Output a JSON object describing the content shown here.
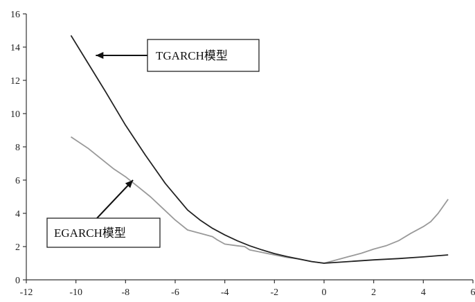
{
  "chart_data": {
    "type": "line",
    "title": "",
    "xlabel": "",
    "ylabel": "",
    "xlim": [
      -12,
      6
    ],
    "ylim": [
      0,
      16
    ],
    "x_ticks": [
      -12,
      -10,
      -8,
      -6,
      -4,
      -2,
      0,
      2,
      4,
      6
    ],
    "y_ticks": [
      0,
      2,
      4,
      6,
      8,
      10,
      12,
      14,
      16
    ],
    "grid": false,
    "series": [
      {
        "name": "TGARCH模型",
        "color": "#222222",
        "points": [
          [
            -10.2,
            14.7
          ],
          [
            -9.5,
            13.0
          ],
          [
            -8.8,
            11.3
          ],
          [
            -8.0,
            9.3
          ],
          [
            -7.2,
            7.5
          ],
          [
            -6.4,
            5.8
          ],
          [
            -5.5,
            4.2
          ],
          [
            -5.0,
            3.6
          ],
          [
            -4.5,
            3.1
          ],
          [
            -4.0,
            2.7
          ],
          [
            -3.5,
            2.35
          ],
          [
            -3.0,
            2.05
          ],
          [
            -2.5,
            1.8
          ],
          [
            -2.0,
            1.58
          ],
          [
            -1.5,
            1.4
          ],
          [
            -1.0,
            1.25
          ],
          [
            -0.5,
            1.1
          ],
          [
            0.0,
            1.0
          ],
          [
            1.0,
            1.1
          ],
          [
            2.0,
            1.2
          ],
          [
            3.0,
            1.28
          ],
          [
            4.0,
            1.38
          ],
          [
            5.0,
            1.5
          ]
        ]
      },
      {
        "name": "EGARCH模型",
        "color": "#999999",
        "points": [
          [
            -10.2,
            8.6
          ],
          [
            -9.5,
            7.9
          ],
          [
            -9.0,
            7.3
          ],
          [
            -8.5,
            6.7
          ],
          [
            -8.0,
            6.2
          ],
          [
            -7.5,
            5.6
          ],
          [
            -7.0,
            5.0
          ],
          [
            -6.5,
            4.3
          ],
          [
            -6.0,
            3.6
          ],
          [
            -5.5,
            3.0
          ],
          [
            -5.0,
            2.8
          ],
          [
            -4.5,
            2.6
          ],
          [
            -4.3,
            2.4
          ],
          [
            -4.0,
            2.15
          ],
          [
            -3.5,
            2.05
          ],
          [
            -3.2,
            2.0
          ],
          [
            -3.0,
            1.8
          ],
          [
            -2.5,
            1.65
          ],
          [
            -2.0,
            1.5
          ],
          [
            -1.5,
            1.35
          ],
          [
            -1.0,
            1.25
          ],
          [
            -0.5,
            1.1
          ],
          [
            0.0,
            1.0
          ],
          [
            0.5,
            1.2
          ],
          [
            1.0,
            1.4
          ],
          [
            1.5,
            1.6
          ],
          [
            2.0,
            1.85
          ],
          [
            2.5,
            2.05
          ],
          [
            3.0,
            2.35
          ],
          [
            3.5,
            2.8
          ],
          [
            4.0,
            3.2
          ],
          [
            4.3,
            3.5
          ],
          [
            4.6,
            4.0
          ],
          [
            5.0,
            4.85
          ]
        ]
      }
    ],
    "annotations": [
      {
        "label": "TGARCH模型",
        "series": "TGARCH模型",
        "arrow_to": [
          -9.2,
          13.5
        ]
      },
      {
        "label": "EGARCH模型",
        "series": "EGARCH模型",
        "arrow_to": [
          -7.7,
          6.0
        ]
      }
    ]
  }
}
